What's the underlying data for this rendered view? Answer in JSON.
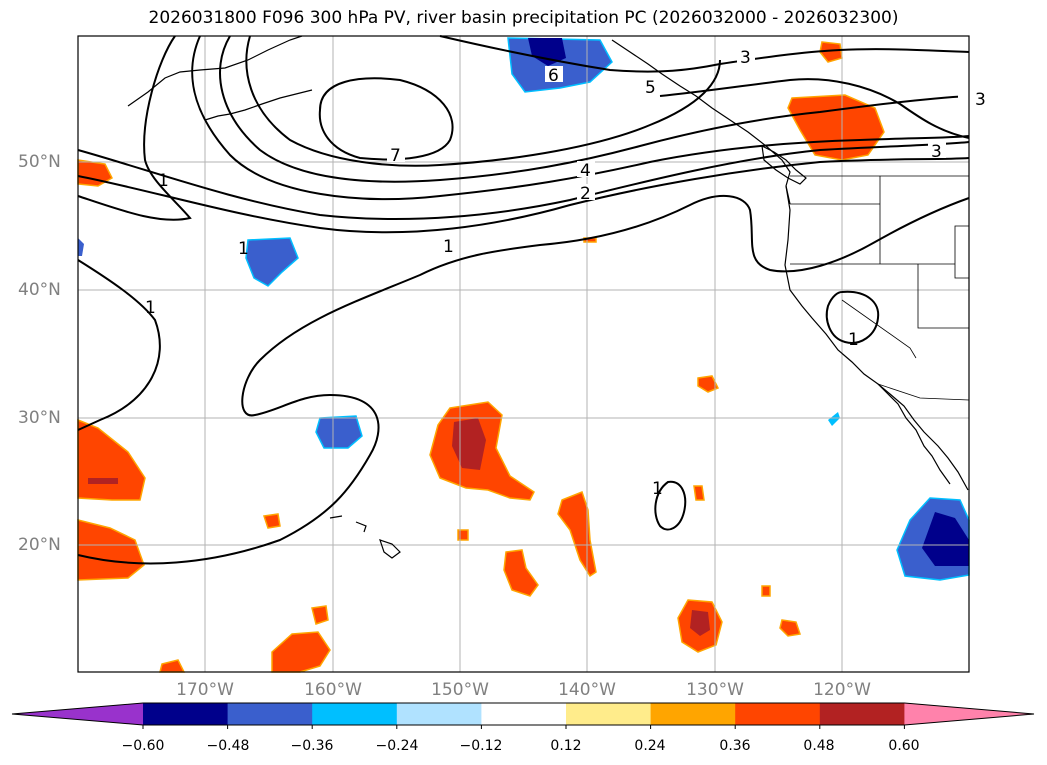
{
  "title": "2026031800 F096 300 hPa PV, river basin precipitation PC (2026032000 - 2026032300)",
  "lat_labels": [
    "50°N",
    "40°N",
    "30°N",
    "20°N"
  ],
  "lon_labels": [
    "170°W",
    "160°W",
    "150°W",
    "140°W",
    "130°W",
    "120°W"
  ],
  "contour_labels": [
    "7",
    "6",
    "5",
    "4",
    "3",
    "3",
    "3",
    "2",
    "1",
    "1",
    "1",
    "1",
    "1",
    "1"
  ],
  "colorbar": {
    "ticks": [
      "−0.60",
      "−0.48",
      "−0.36",
      "−0.24",
      "−0.12",
      "0.12",
      "0.24",
      "0.36",
      "0.48",
      "0.60"
    ],
    "colors": [
      "#9932cc",
      "#00008b",
      "#3a5fcd",
      "#00bfff",
      "#b0e2ff",
      "#ffffff",
      "#ffec8b",
      "#ffa500",
      "#ff4500",
      "#b22222",
      "#ff82ab"
    ]
  }
}
